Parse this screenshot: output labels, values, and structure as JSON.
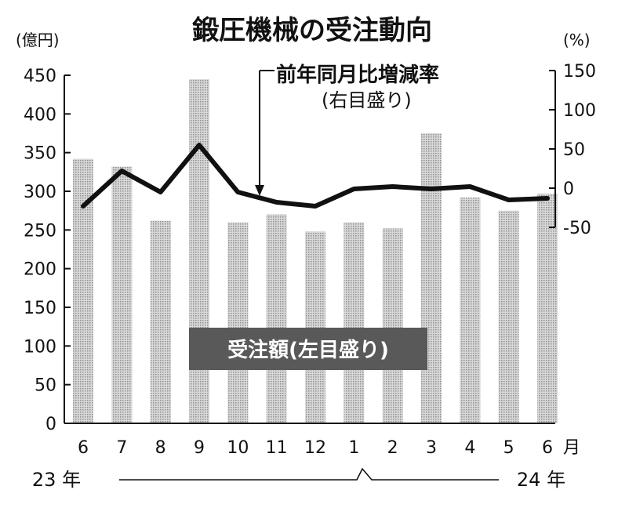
{
  "chart_data": {
    "type": "bar+line",
    "title": "鍛圧機械の受注動向",
    "categories": [
      "6",
      "7",
      "8",
      "9",
      "10",
      "11",
      "12",
      "1",
      "2",
      "3",
      "4",
      "5",
      "6"
    ],
    "month_unit": "月",
    "year_start": "23 年",
    "year_end": "24 年",
    "left_axis": {
      "unit": "(億円)",
      "ticks": [
        "450",
        "400",
        "350",
        "300",
        "250",
        "200",
        "150",
        "100",
        "50",
        "0"
      ],
      "range": [
        0,
        450
      ]
    },
    "right_axis": {
      "unit": "(%)",
      "ticks": [
        "150",
        "100",
        "50",
        "0",
        "-50"
      ],
      "range": [
        -50,
        150
      ]
    },
    "series": [
      {
        "name": "受注額(左目盛り)",
        "type": "bar",
        "axis": "left",
        "values": [
          342,
          332,
          262,
          445,
          260,
          270,
          248,
          260,
          252,
          375,
          292,
          275,
          297
        ]
      },
      {
        "name": "前年同月比増減率(右目盛り)",
        "type": "line",
        "axis": "right",
        "values": [
          -23,
          22,
          -5,
          55,
          -5,
          -18,
          -23,
          -1,
          2,
          -1,
          2,
          -15,
          -13
        ]
      }
    ],
    "annotations": {
      "line_label_1": "前年同月比増減率",
      "line_label_2": "(右目盛り)",
      "bar_label": "受注額(左目盛り)"
    }
  }
}
